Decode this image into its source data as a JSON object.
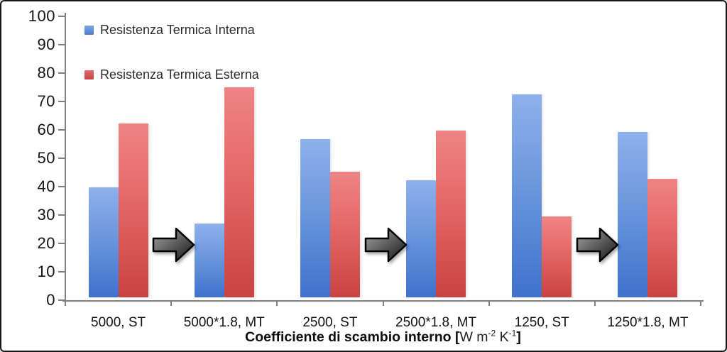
{
  "chart_data": {
    "type": "bar",
    "title": "",
    "categories": [
      "5000, ST",
      "5000*1.8, MT",
      "2500, ST",
      "2500*1.8, MT",
      "1250, ST",
      "1250*1.8, MT"
    ],
    "series": [
      {
        "name": "Resistenza Termica Interna",
        "color": "#4a7cd0",
        "values": [
          38.8,
          26,
          55.8,
          41.2,
          71.5,
          58.3
        ]
      },
      {
        "name": "Resistenza Termica Esterna",
        "color": "#c64444",
        "values": [
          61.2,
          74,
          44.2,
          58.8,
          28.5,
          41.8
        ]
      }
    ],
    "ylim": [
      0,
      100
    ],
    "yticks": [
      0,
      10,
      20,
      30,
      40,
      50,
      60,
      70,
      80,
      90,
      100
    ],
    "grid": false,
    "legend_position": "top-left",
    "xlabel_main": "Coefficiente di scambio interno",
    "xlabel_units": {
      "open": "[",
      "body1": "W m",
      "sup1": "-2",
      "body2": " K",
      "sup2": "-1",
      "close": "]"
    },
    "annotations": {
      "arrow_glyph": "right-block-arrow",
      "arrows_between_groups": [
        [
          0,
          1
        ],
        [
          2,
          3
        ],
        [
          4,
          5
        ]
      ]
    },
    "colors": {
      "bar_interna_top": "#8fb0eb",
      "bar_interna_bottom": "#3f72cc",
      "bar_esterna_top": "#ef8484",
      "bar_esterna_bottom": "#c94343",
      "axis": "#808080",
      "arrow_light": "#a6a6a6",
      "arrow_dark": "#141414"
    }
  }
}
